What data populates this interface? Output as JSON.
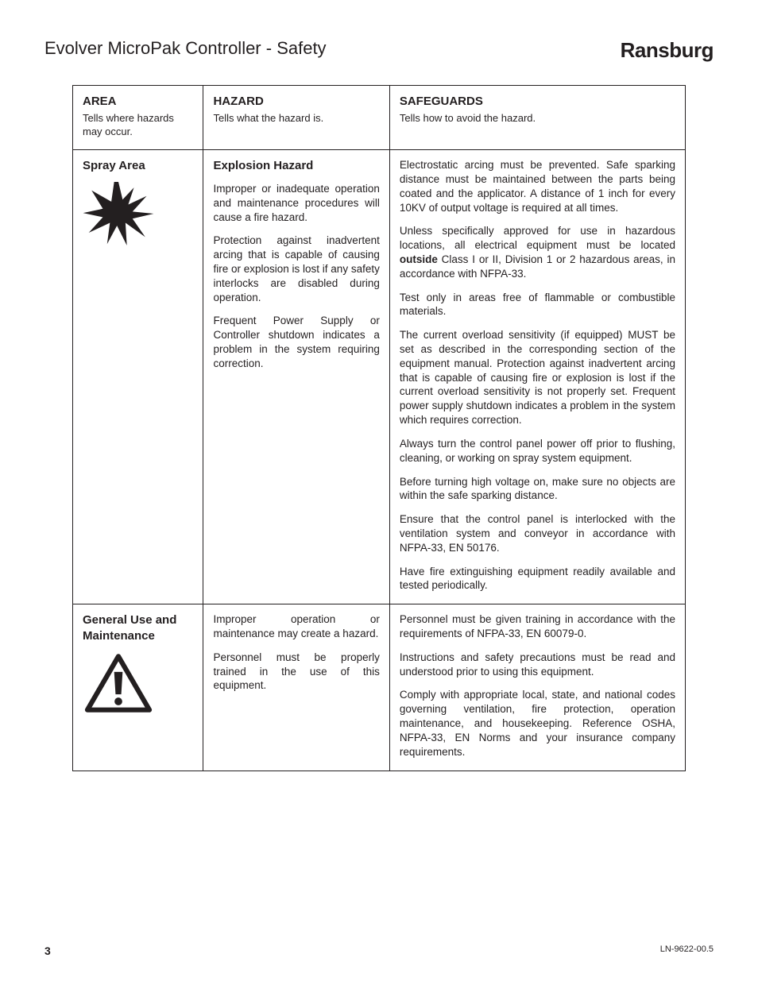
{
  "header": {
    "title": "Evolver MicroPak Controller - Safety",
    "brand": "Ransburg"
  },
  "table": {
    "headers": {
      "area": {
        "title": "AREA",
        "sub": "Tells where hazards may occur."
      },
      "hazard": {
        "title": "HAZARD",
        "sub": "Tells what the hazard is."
      },
      "safe": {
        "title": "SAFEGUARDS",
        "sub": "Tells how to avoid the hazard."
      }
    },
    "rows": [
      {
        "area_title": "Spray Area",
        "icon": "explosion",
        "hazard_title": "Explosion Hazard",
        "hazard_paras": [
          "Improper or inadequate operation and maintenance procedures will cause a fire hazard.",
          "Protection against inadvertent arcing that is capable of causing fire or explosion is lost if any safety interlocks are disabled during operation.",
          "Frequent Power Supply or Controller shutdown indicates a problem in the system requiring correction."
        ],
        "safe_paras": [
          "Electrostatic arcing must be prevented.  Safe sparking distance must be maintained between the parts being coated and the applicator.  A distance of 1 inch for every 10KV of output voltage is required at all times.",
          "Unless specifically approved for use in hazardous locations, all electrical equipment must be located <b class=\"inline\">outside</b> Class I or II, Division 1 or 2 hazardous areas, in accordance with NFPA-33.",
          "Test only in areas free of flammable or combustible materials.",
          "The current overload sensitivity (if equipped) MUST be set as described in the corresponding section of the equipment manual.  Protection against inadvertent arcing that is capable of causing fire or explosion is lost if the current overload sensitivity is not properly set.  Frequent power supply shutdown indicates a problem in the system which requires correction.",
          "Always turn the control panel power off prior to flushing, cleaning, or working on spray system equipment.",
          "Before turning high voltage on, make sure no objects are within the safe sparking distance.",
          "Ensure that the control panel is interlocked with the ventilation system and conveyor in accordance with NFPA-33, EN 50176.",
          "Have fire extinguishing equipment readily available and tested periodically."
        ]
      },
      {
        "area_title": "General Use and Maintenance",
        "icon": "warning",
        "hazard_title": "",
        "hazard_paras": [
          "Improper operation or maintenance may create a hazard.",
          "Personnel must be properly trained in the use of this equipment."
        ],
        "safe_paras": [
          "Personnel must be given training in accordance with the requirements of NFPA-33, EN 60079-0.",
          "Instructions and safety precautions must be read and understood prior to using this equipment.",
          "Comply with appropriate local, state, and national codes governing ventilation, fire protection, operation maintenance, and housekeeping. Reference OSHA, NFPA-33, EN Norms and your insurance company requirements."
        ]
      }
    ]
  },
  "footer": {
    "page_number": "3",
    "doc_number": "LN-9622-00.5"
  },
  "colors": {
    "text": "#231f20",
    "border": "#231f20",
    "background": "#ffffff",
    "icon_fill": "#231f20"
  }
}
